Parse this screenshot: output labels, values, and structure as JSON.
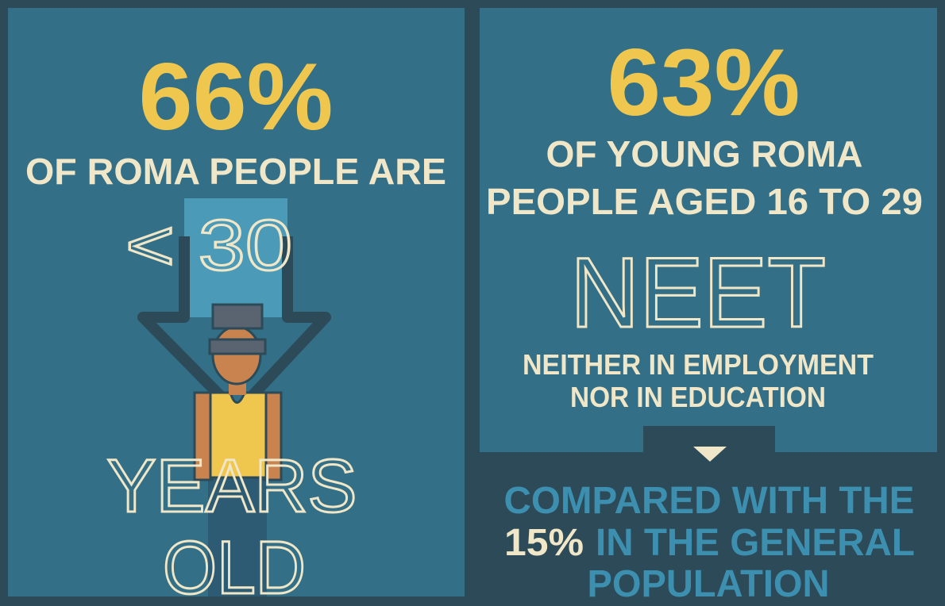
{
  "left_panel": {
    "stat": "66%",
    "line1": "OF ROMA PEOPLE ARE",
    "age": "< 30",
    "line2": "YEARS",
    "line3": "OLD"
  },
  "right_panel": {
    "stat": "63%",
    "line1": "OF YOUNG ROMA",
    "line2": "PEOPLE AGED 16 TO 29",
    "term": "NEET",
    "definition1": "NEITHER IN EMPLOYMENT",
    "definition2": "NOR IN EDUCATION"
  },
  "comparison": {
    "line1": "COMPARED WITH THE",
    "stat": "15%",
    "line2": "IN THE GENERAL",
    "line3": "POPULATION"
  }
}
